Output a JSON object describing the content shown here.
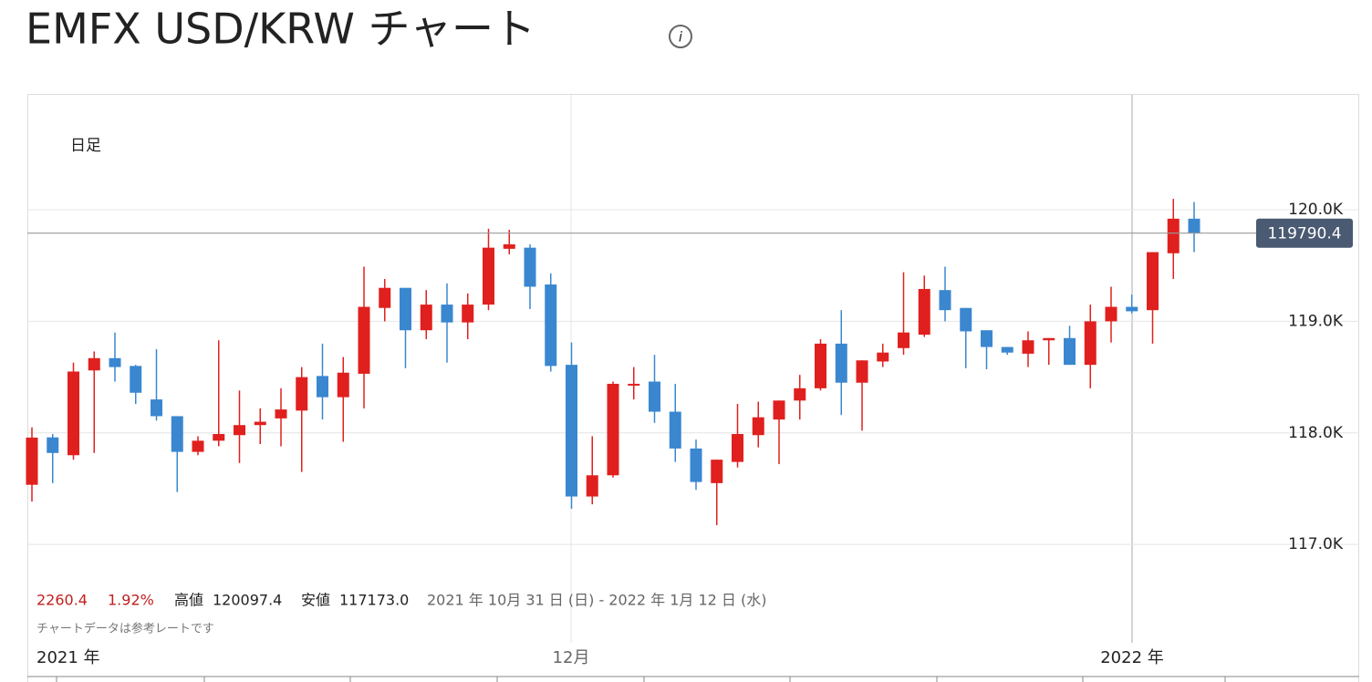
{
  "chart_data": {
    "type": "candlestick",
    "title": "EMFX USD/KRW チャート",
    "period": "日足",
    "up_color": "#e0201e",
    "down_color": "#3a87d0",
    "ylim": [
      116650,
      121030
    ],
    "yticks": [
      {
        "value": 117000,
        "label": "117.0K"
      },
      {
        "value": 118000,
        "label": "118.0K"
      },
      {
        "value": 119000,
        "label": "119.0K"
      },
      {
        "value": 120000,
        "label": "120.0K"
      }
    ],
    "grid": true,
    "x_labels": [
      "2021 年",
      "12月",
      "2022 年"
    ],
    "open": [
      117535,
      117960,
      117800,
      118560,
      118670,
      118600,
      118300,
      118150,
      117830,
      117930,
      117980,
      118070,
      118130,
      118200,
      118510,
      118320,
      118530,
      119120,
      119300,
      118920,
      119150,
      118990,
      119150,
      119650,
      119660,
      119330,
      118610,
      117430,
      117620,
      118430,
      118460,
      118190,
      117860,
      117550,
      117740,
      117980,
      118120,
      118290,
      118400,
      118800,
      118450,
      118640,
      118760,
      118880,
      119280,
      119120,
      118920,
      118770,
      118710,
      118830,
      118850,
      118610,
      119000,
      119130,
      119100,
      119610,
      119920
    ],
    "high": [
      118050,
      117990,
      118630,
      118730,
      118900,
      118610,
      118750,
      118150,
      117970,
      118830,
      118380,
      118220,
      118400,
      118590,
      118800,
      118680,
      119490,
      119380,
      119300,
      119280,
      119340,
      119250,
      119830,
      119820,
      119690,
      119430,
      118810,
      117970,
      118460,
      118590,
      118700,
      118440,
      117940,
      117760,
      118260,
      118280,
      118290,
      118520,
      118840,
      119100,
      118650,
      118800,
      119440,
      119410,
      119490,
      119120,
      118920,
      118770,
      118910,
      118850,
      118960,
      119150,
      119310,
      119240,
      119620,
      120097.4,
      120070
    ],
    "low": [
      117385,
      117550,
      117760,
      117820,
      118460,
      118260,
      118110,
      117470,
      117800,
      117880,
      117730,
      117900,
      117880,
      117650,
      118120,
      117920,
      118220,
      119000,
      118580,
      118840,
      118630,
      118840,
      119100,
      119600,
      119110,
      118550,
      117320,
      117360,
      117600,
      118300,
      118090,
      117740,
      117490,
      117173,
      117690,
      117870,
      117720,
      118120,
      118380,
      118160,
      118020,
      118590,
      118700,
      118860,
      119000,
      118580,
      118570,
      118700,
      118590,
      118610,
      118610,
      118400,
      118810,
      119070,
      118800,
      119380,
      119620
    ],
    "close": [
      117958,
      117820,
      118550,
      118670,
      118590,
      118360,
      118150,
      117830,
      117930,
      117990,
      118070,
      118100,
      118210,
      118500,
      118320,
      118540,
      119130,
      119300,
      118920,
      119150,
      118990,
      119150,
      119660,
      119690,
      119310,
      118600,
      117430,
      117620,
      118440,
      118440,
      118190,
      117860,
      117560,
      117760,
      117990,
      118140,
      118290,
      118400,
      118800,
      118450,
      118650,
      118720,
      118900,
      119290,
      119100,
      118910,
      118770,
      118720,
      118830,
      118850,
      118610,
      119000,
      119130,
      119090,
      119620,
      119920,
      119790.4
    ],
    "summary": {
      "change": "2260.4",
      "change_percent": "1.92%",
      "high_label": "高値",
      "high": "120097.4",
      "low_label": "安値",
      "low": "117173.0",
      "range": "2021 年 10月 31 日 (日) - 2022 年 1月 12 日 (水)"
    },
    "note": "チャートデータは参考レートです"
  }
}
